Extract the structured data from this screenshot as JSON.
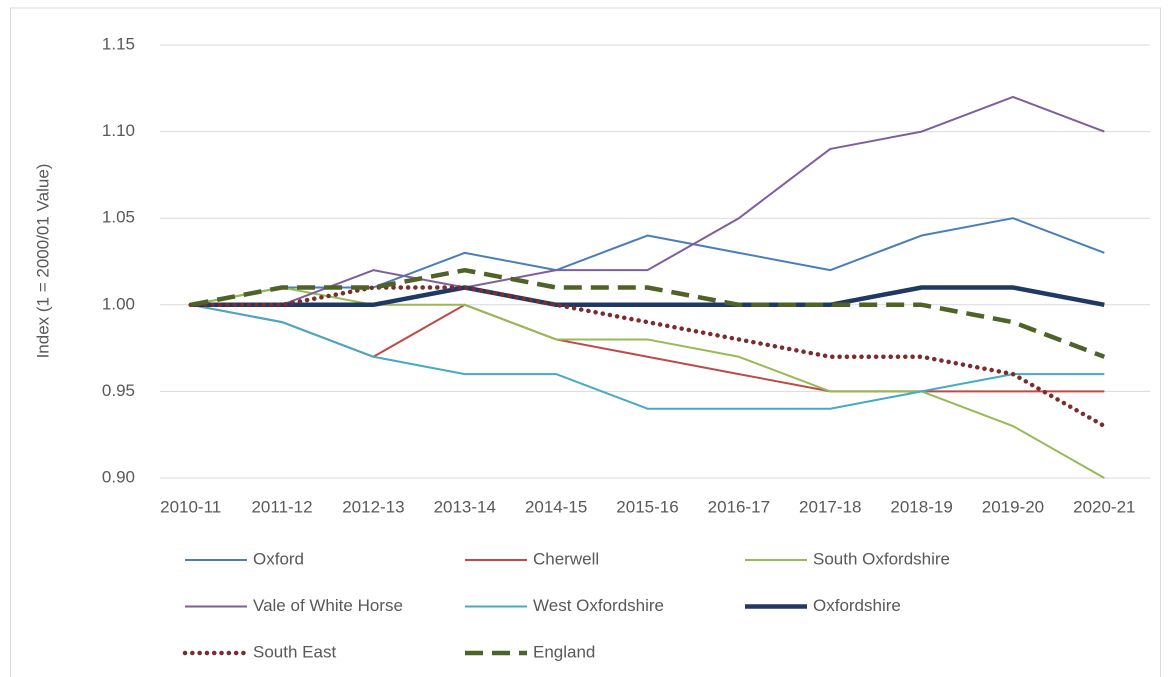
{
  "chart_data": {
    "type": "line",
    "y_label": "Index (1 = 2000/01 Value)",
    "categories": [
      "2010-11",
      "2011-12",
      "2012-13",
      "2013-14",
      "2014-15",
      "2015-16",
      "2016-17",
      "2017-18",
      "2018-19",
      "2019-20",
      "2020-21"
    ],
    "ylim": [
      0.9,
      1.15
    ],
    "yticks": [
      {
        "value": 0.9,
        "label": "0.90"
      },
      0.95,
      {
        "value": 1.0,
        "label": "1.00"
      },
      1.05,
      {
        "value": 1.1,
        "label": "1.10"
      },
      1.15
    ],
    "grid": true,
    "legend": "bottom",
    "series": [
      {
        "name": "Oxford",
        "color": "#4a7ebb",
        "width": 2,
        "dash": "solid",
        "values": [
          1.0,
          1.01,
          1.01,
          1.03,
          1.02,
          1.04,
          1.03,
          1.02,
          1.04,
          1.05,
          1.03
        ]
      },
      {
        "name": "Cherwell",
        "color": "#be4b48",
        "width": 2,
        "dash": "solid",
        "values": [
          1.0,
          0.99,
          0.97,
          1.0,
          0.98,
          0.97,
          0.96,
          0.95,
          0.95,
          0.95,
          0.95
        ]
      },
      {
        "name": "South Oxfordshire",
        "color": "#98b954",
        "width": 2,
        "dash": "solid",
        "values": [
          1.0,
          1.01,
          1.0,
          1.0,
          0.98,
          0.98,
          0.97,
          0.95,
          0.95,
          0.93,
          0.9
        ]
      },
      {
        "name": "Vale of White Horse",
        "color": "#7d5fa0",
        "width": 2,
        "dash": "solid",
        "values": [
          1.0,
          1.0,
          1.02,
          1.01,
          1.02,
          1.02,
          1.05,
          1.09,
          1.1,
          1.12,
          1.1
        ]
      },
      {
        "name": "West Oxfordshire",
        "color": "#46aac5",
        "width": 2,
        "dash": "solid",
        "values": [
          1.0,
          0.99,
          0.97,
          0.96,
          0.96,
          0.94,
          0.94,
          0.94,
          0.95,
          0.96,
          0.96
        ]
      },
      {
        "name": "Oxfordshire",
        "color": "#1f3864",
        "width": 4.5,
        "dash": "solid",
        "values": [
          1.0,
          1.0,
          1.0,
          1.01,
          1.0,
          1.0,
          1.0,
          1.0,
          1.01,
          1.01,
          1.0
        ]
      },
      {
        "name": "South East",
        "color": "#7b2c2c",
        "width": 4.5,
        "dash": "dotted",
        "values": [
          1.0,
          1.0,
          1.01,
          1.01,
          1.0,
          0.99,
          0.98,
          0.97,
          0.97,
          0.96,
          0.93
        ]
      },
      {
        "name": "England",
        "color": "#4f6228",
        "width": 4.5,
        "dash": "dashed",
        "values": [
          1.0,
          1.01,
          1.01,
          1.02,
          1.01,
          1.01,
          1.0,
          1.0,
          1.0,
          0.99,
          0.97
        ]
      }
    ]
  }
}
